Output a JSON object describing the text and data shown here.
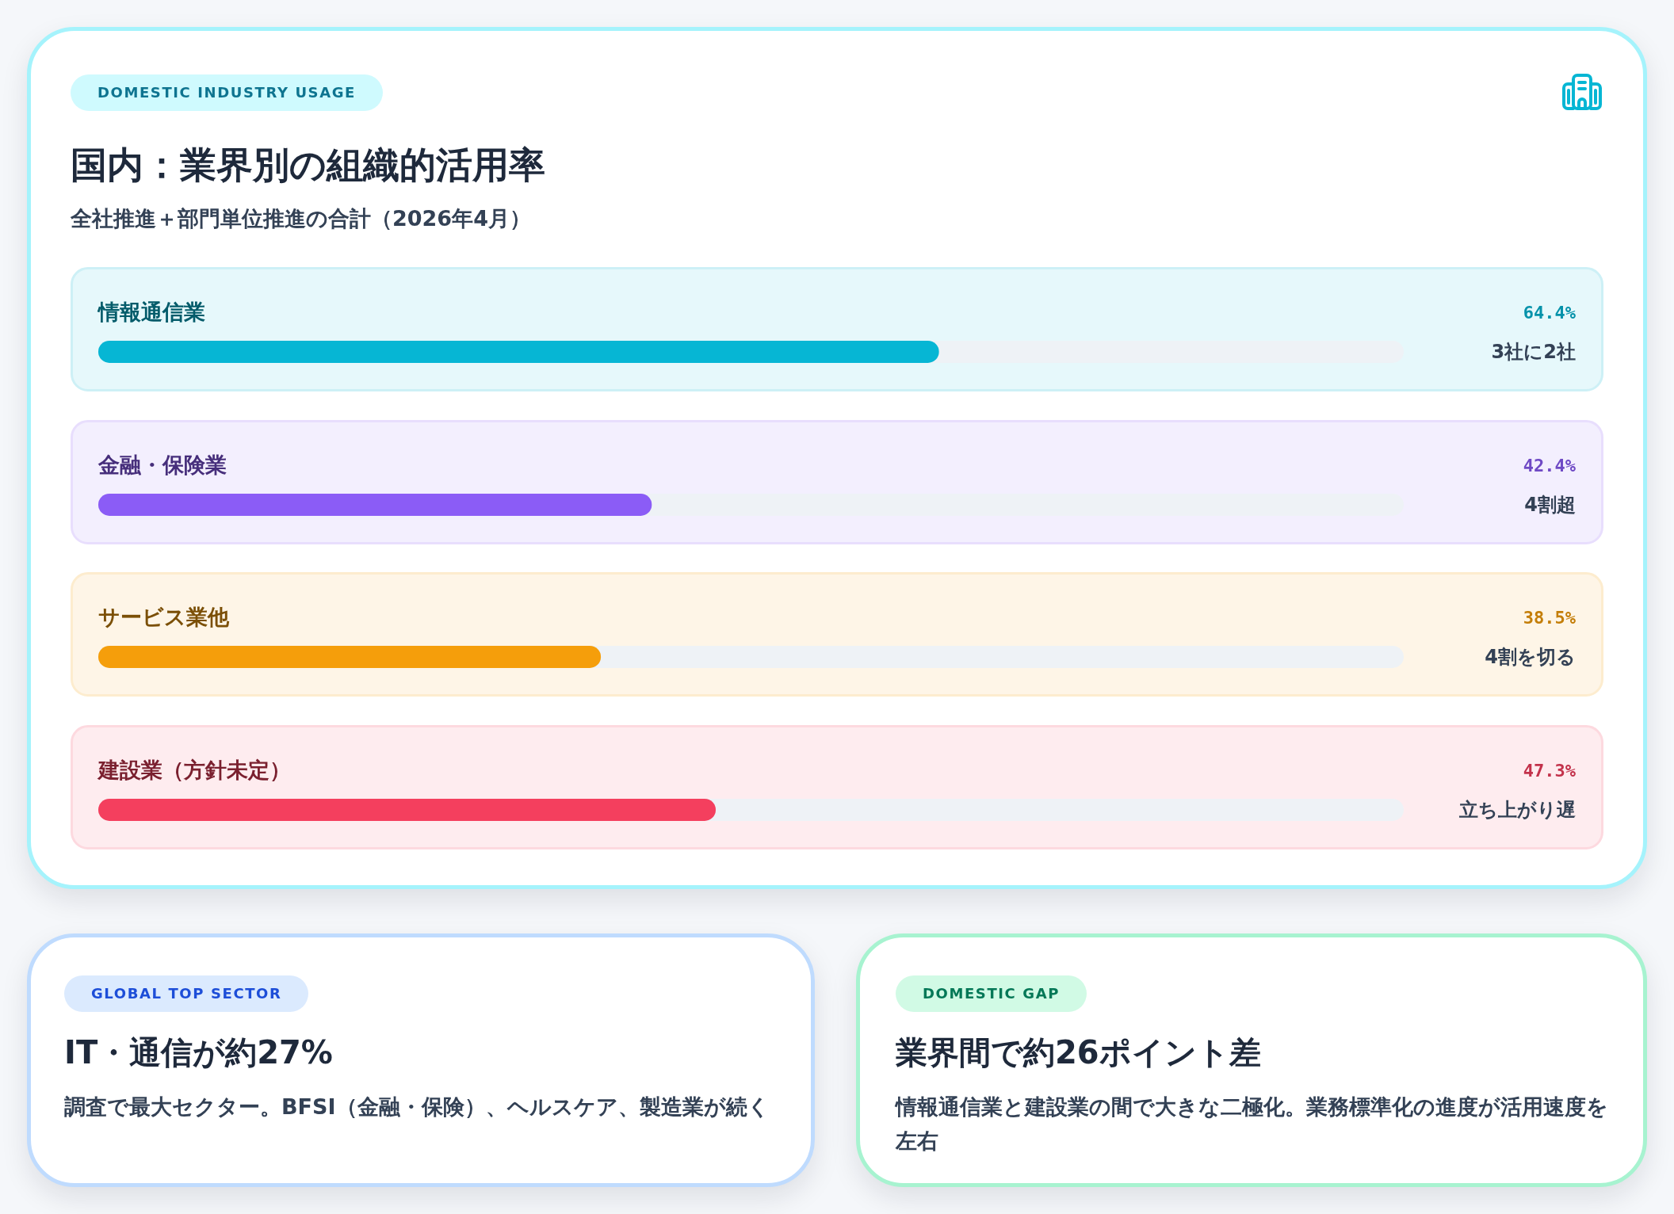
{
  "chart_data": [
    {
      "type": "bar",
      "orientation": "horizontal",
      "title": "国内：業界別の組織的活用率",
      "subtitle": "全社推進＋部門単位推進の合計（2026年4月）",
      "annotations": [
        "DOMESTIC INDUSTRY USAGE",
        "3社に2社",
        "4割超",
        "4割を切る",
        "立ち上がり遅"
      ],
      "categories": [
        "情報通信業",
        "金融・保険業",
        "サービス業他",
        "建設業（方針未定）"
      ],
      "values": [
        64.4,
        42.4,
        38.5,
        47.3
      ],
      "colors": [
        "#06b6d4",
        "#8b5cf6",
        "#f59e0b",
        "#f43f5e"
      ],
      "value_labels": [
        "64.4%",
        "42.4%",
        "38.5%",
        "47.3%"
      ],
      "xlim": [
        0,
        100
      ],
      "tick_labels": "y"
    },
    {
      "type": "other",
      "title": "IT・通信が約27%",
      "subtitle": "調査で最大セクター。BFSI（金融・保険）、ヘルスケア、製造業が続く",
      "annotations": [
        "GLOBAL TOP SECTOR"
      ]
    },
    {
      "type": "other",
      "title": "業界間で約26ポイント差",
      "subtitle": "情報通信業と建設業の間で大きな二極化。業務標準化の進度が活用速度を左右",
      "annotations": [
        "DOMESTIC GAP"
      ]
    }
  ]
}
